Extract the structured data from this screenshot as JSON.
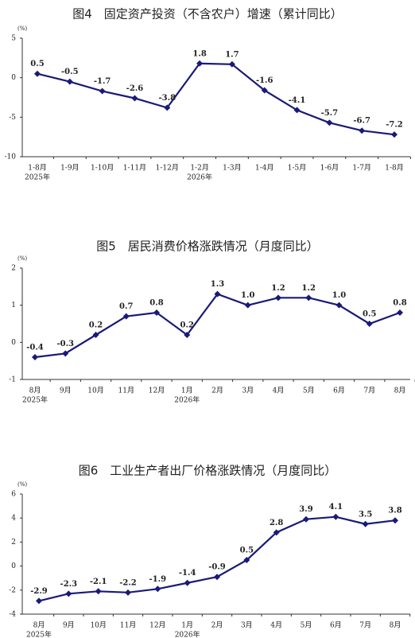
{
  "chart_data": [
    {
      "type": "line",
      "title": "图4　固定资产投资（不含农户）增速（累计同比）",
      "unit": "(%)",
      "categories": [
        "1-8月",
        "1-9月",
        "1-10月",
        "1-11月",
        "1-12月",
        "1-2月",
        "1-3月",
        "1-4月",
        "1-5月",
        "1-6月",
        "1-7月",
        "1-8月"
      ],
      "x_sublabels": [
        "2025年",
        null,
        null,
        null,
        null,
        "2026年",
        null,
        null,
        null,
        null,
        null,
        null
      ],
      "values": [
        0.5,
        -0.5,
        -1.7,
        -2.6,
        -3.8,
        1.8,
        1.7,
        -1.6,
        -4.1,
        -5.7,
        -6.7,
        -7.2
      ],
      "value_labels": [
        "0.5",
        "-0.5",
        "-1.7",
        "-2.6",
        "-3.8",
        "1.8",
        "1.7",
        "-1.6",
        "-4.1",
        "-5.7",
        "-6.7",
        "-7.2"
      ],
      "color": "#1a1a78",
      "ylim": [
        -10,
        5
      ],
      "yticks": [
        -10,
        -5,
        0,
        5
      ]
    },
    {
      "type": "line",
      "title": "图5　居民消费价格涨跌情况（月度同比）",
      "unit": "(%)",
      "categories": [
        "8月",
        "9月",
        "10月",
        "11月",
        "12月",
        "1月",
        "2月",
        "3月",
        "4月",
        "5月",
        "6月",
        "7月",
        "8月"
      ],
      "x_sublabels": [
        "2025年",
        null,
        null,
        null,
        null,
        "2026年",
        null,
        null,
        null,
        null,
        null,
        null,
        null
      ],
      "values": [
        -0.4,
        -0.3,
        0.2,
        0.7,
        0.8,
        0.2,
        1.3,
        1.0,
        1.2,
        1.2,
        1.0,
        0.5,
        0.8
      ],
      "value_labels": [
        "-0.4",
        "-0.3",
        "0.2",
        "0.7",
        "0.8",
        "0.2",
        "1.3",
        "1.0",
        "1.2",
        "1.2",
        "1.0",
        "0.5",
        "0.8"
      ],
      "color": "#1a1a78",
      "ylim": [
        -1,
        2
      ],
      "yticks": [
        -1,
        0,
        1,
        2
      ]
    },
    {
      "type": "line",
      "title": "图6　工业生产者出厂价格涨跌情况（月度同比）",
      "unit": "(%)",
      "categories": [
        "8月",
        "9月",
        "10月",
        "11月",
        "12月",
        "1月",
        "2月",
        "3月",
        "4月",
        "5月",
        "6月",
        "7月",
        "8月"
      ],
      "x_sublabels": [
        "2025年",
        null,
        null,
        null,
        null,
        "2026年",
        null,
        null,
        null,
        null,
        null,
        null,
        null
      ],
      "values": [
        -2.9,
        -2.3,
        -2.1,
        -2.2,
        -1.9,
        -1.4,
        -0.9,
        0.5,
        2.8,
        3.9,
        4.1,
        3.5,
        3.8
      ],
      "value_labels": [
        "-2.9",
        "-2.3",
        "-2.1",
        "-2.2",
        "-1.9",
        "-1.4",
        "-0.9",
        "0.5",
        "2.8",
        "3.9",
        "4.1",
        "3.5",
        "3.8"
      ],
      "color": "#1a1a78",
      "ylim": [
        -4,
        6
      ],
      "yticks": [
        -4,
        -2,
        0,
        2,
        4,
        6
      ]
    }
  ]
}
